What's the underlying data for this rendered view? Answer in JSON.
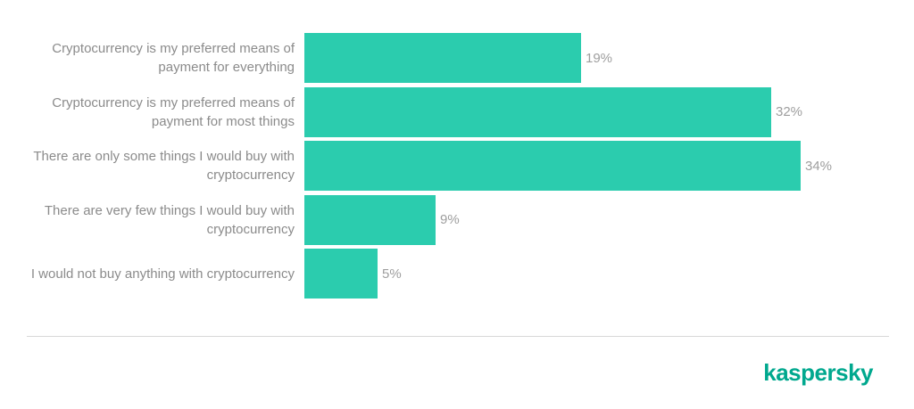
{
  "chart_data": {
    "type": "bar",
    "orientation": "horizontal",
    "title": "",
    "xlabel": "",
    "ylabel": "",
    "grid": false,
    "legend_position": "none",
    "xlim": [
      0,
      40
    ],
    "categories": [
      "Cryptocurrency is my preferred means of payment for everything",
      "Cryptocurrency is my preferred means of payment for most things",
      "There are only some things I would buy with cryptocurrency",
      "There are very few things I would buy with cryptocurrency",
      "I would not buy anything with cryptocurrency"
    ],
    "values": [
      19,
      32,
      34,
      9,
      5
    ],
    "value_labels": [
      "19%",
      "32%",
      "34%",
      "9%",
      "5%"
    ],
    "bar_color": "#2bccae",
    "category_label_color": "#8b8b8b",
    "value_label_color": "#9e9e9e"
  },
  "footer": {
    "brand": "kaspersky",
    "brand_color": "#00a88e",
    "divider_color": "#d8d8d8"
  }
}
